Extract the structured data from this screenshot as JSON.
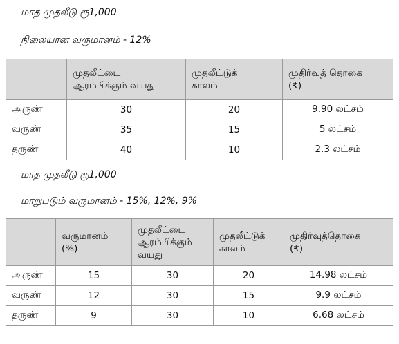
{
  "section1": {
    "monthly_investment": "மாத முதலீடு ரூ1,000",
    "return_label": "நிலையான வருமானம் - 12%",
    "table": {
      "headers": [
        "",
        "முதலீட்டை\nஆரம்பிக்கும் வயது",
        "முதலீட்டுக்\nகாலம்",
        "முதிர்வுத் தொகை\n(₹)"
      ],
      "rows": [
        [
          "அருண்",
          "30",
          "20",
          "9.90 லட்சம்"
        ],
        [
          "வருண்",
          "35",
          "15",
          "5 லட்சம்"
        ],
        [
          "தருண்",
          "40",
          "10",
          "2.3 லட்சம்"
        ]
      ]
    }
  },
  "section2": {
    "monthly_investment": "மாத முதலீடு ரூ1,000",
    "return_label": "மாறுபடும் வருமானம் - 15%, 12%, 9%",
    "table": {
      "headers": [
        "",
        "வருமானம்\n(%)",
        "முதலீட்டை\nஆரம்பிக்கும்\nவயது",
        "முதலீட்டுக்\nகாலம்",
        "முதிர்வுத்தொகை\n(₹)"
      ],
      "rows": [
        [
          "அருண்",
          "15",
          "30",
          "20",
          "14.98 லட்சம்"
        ],
        [
          "வருண்",
          "12",
          "30",
          "15",
          "9.9 லட்சம்"
        ],
        [
          "தருண்",
          "9",
          "30",
          "10",
          "6.68 லட்சம்"
        ]
      ]
    }
  }
}
